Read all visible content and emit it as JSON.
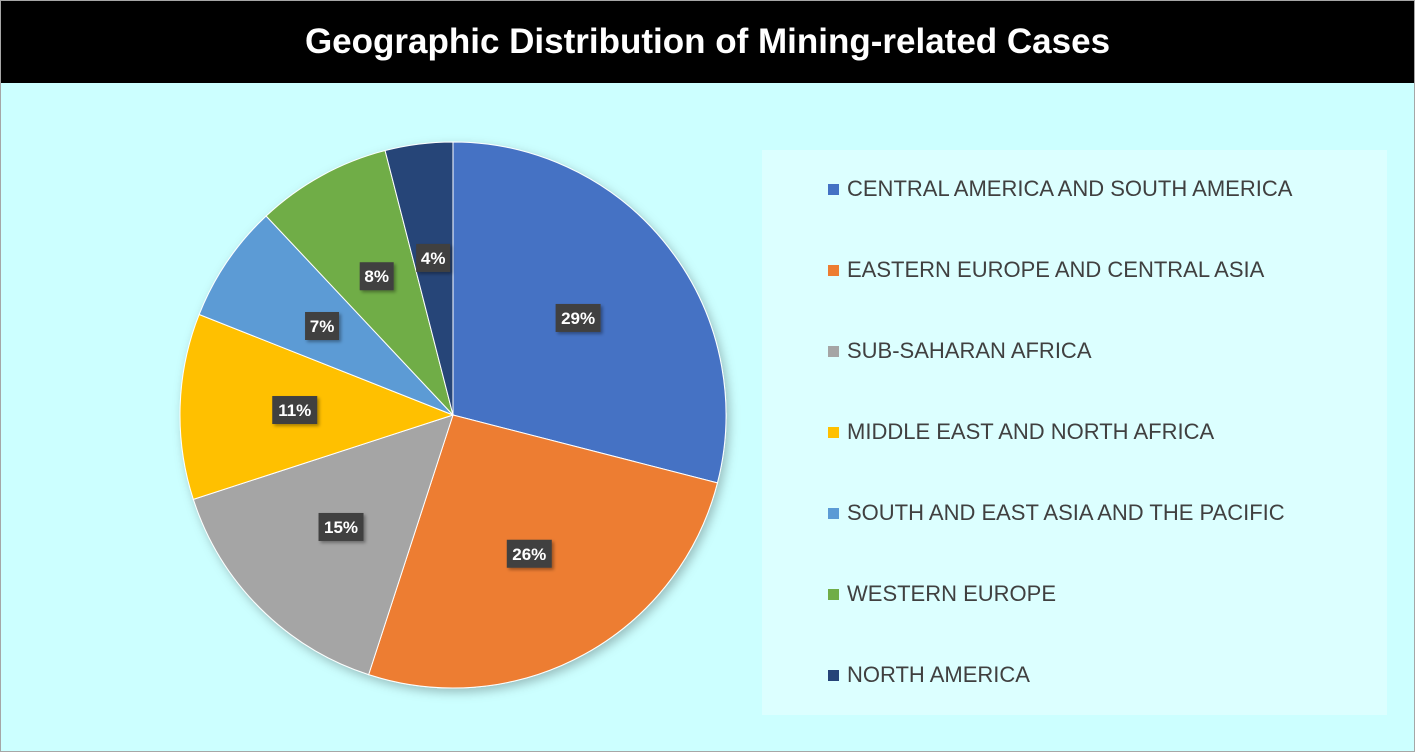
{
  "title": "Geographic Distribution of Mining-related Cases",
  "chart_data": {
    "type": "pie",
    "title": "Geographic Distribution of Mining-related Cases",
    "categories": [
      "CENTRAL AMERICA AND SOUTH AMERICA",
      "EASTERN EUROPE AND CENTRAL ASIA",
      "SUB-SAHARAN AFRICA",
      "MIDDLE EAST AND NORTH AFRICA",
      "SOUTH AND EAST ASIA AND THE PACIFIC",
      "WESTERN EUROPE",
      "NORTH AMERICA"
    ],
    "values": [
      29,
      26,
      15,
      11,
      7,
      8,
      4
    ],
    "labels": [
      "29%",
      "26%",
      "15%",
      "11%",
      "7%",
      "8%",
      "4%"
    ],
    "colors": [
      "#4472c4",
      "#ed7d31",
      "#a5a5a5",
      "#ffc000",
      "#5b9bd5",
      "#70ad47",
      "#264478"
    ],
    "legend_position": "right"
  }
}
